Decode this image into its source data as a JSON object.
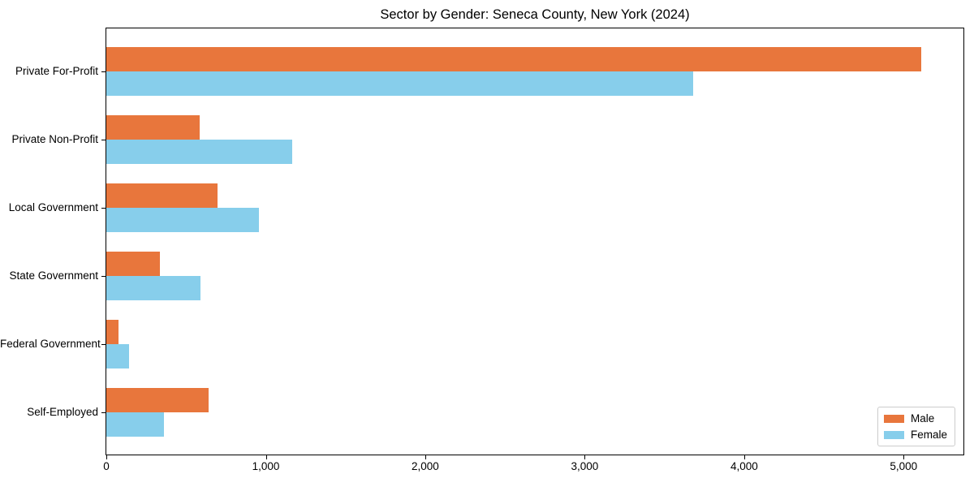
{
  "chart_data": {
    "type": "bar",
    "orientation": "horizontal",
    "title": "Sector by Gender: Seneca County, New York (2024)",
    "categories": [
      "Private For-Profit",
      "Private Non-Profit",
      "Local Government",
      "State Government",
      "Federal Government",
      "Self-Employed"
    ],
    "series": [
      {
        "name": "Male",
        "color": "#e8763c",
        "values": [
          5110,
          585,
          695,
          335,
          75,
          640
        ]
      },
      {
        "name": "Female",
        "color": "#87ceeb",
        "values": [
          3680,
          1165,
          955,
          590,
          140,
          360
        ]
      }
    ],
    "xlim": [
      0,
      5375
    ],
    "xticks": [
      0,
      1000,
      2000,
      3000,
      4000,
      5000
    ],
    "xtick_labels": [
      "0",
      "1,000",
      "2,000",
      "3,000",
      "4,000",
      "5,000"
    ],
    "xlabel": "",
    "ylabel": "",
    "grid": false,
    "legend": {
      "position": "lower right",
      "labels": [
        "Male",
        "Female"
      ]
    }
  }
}
